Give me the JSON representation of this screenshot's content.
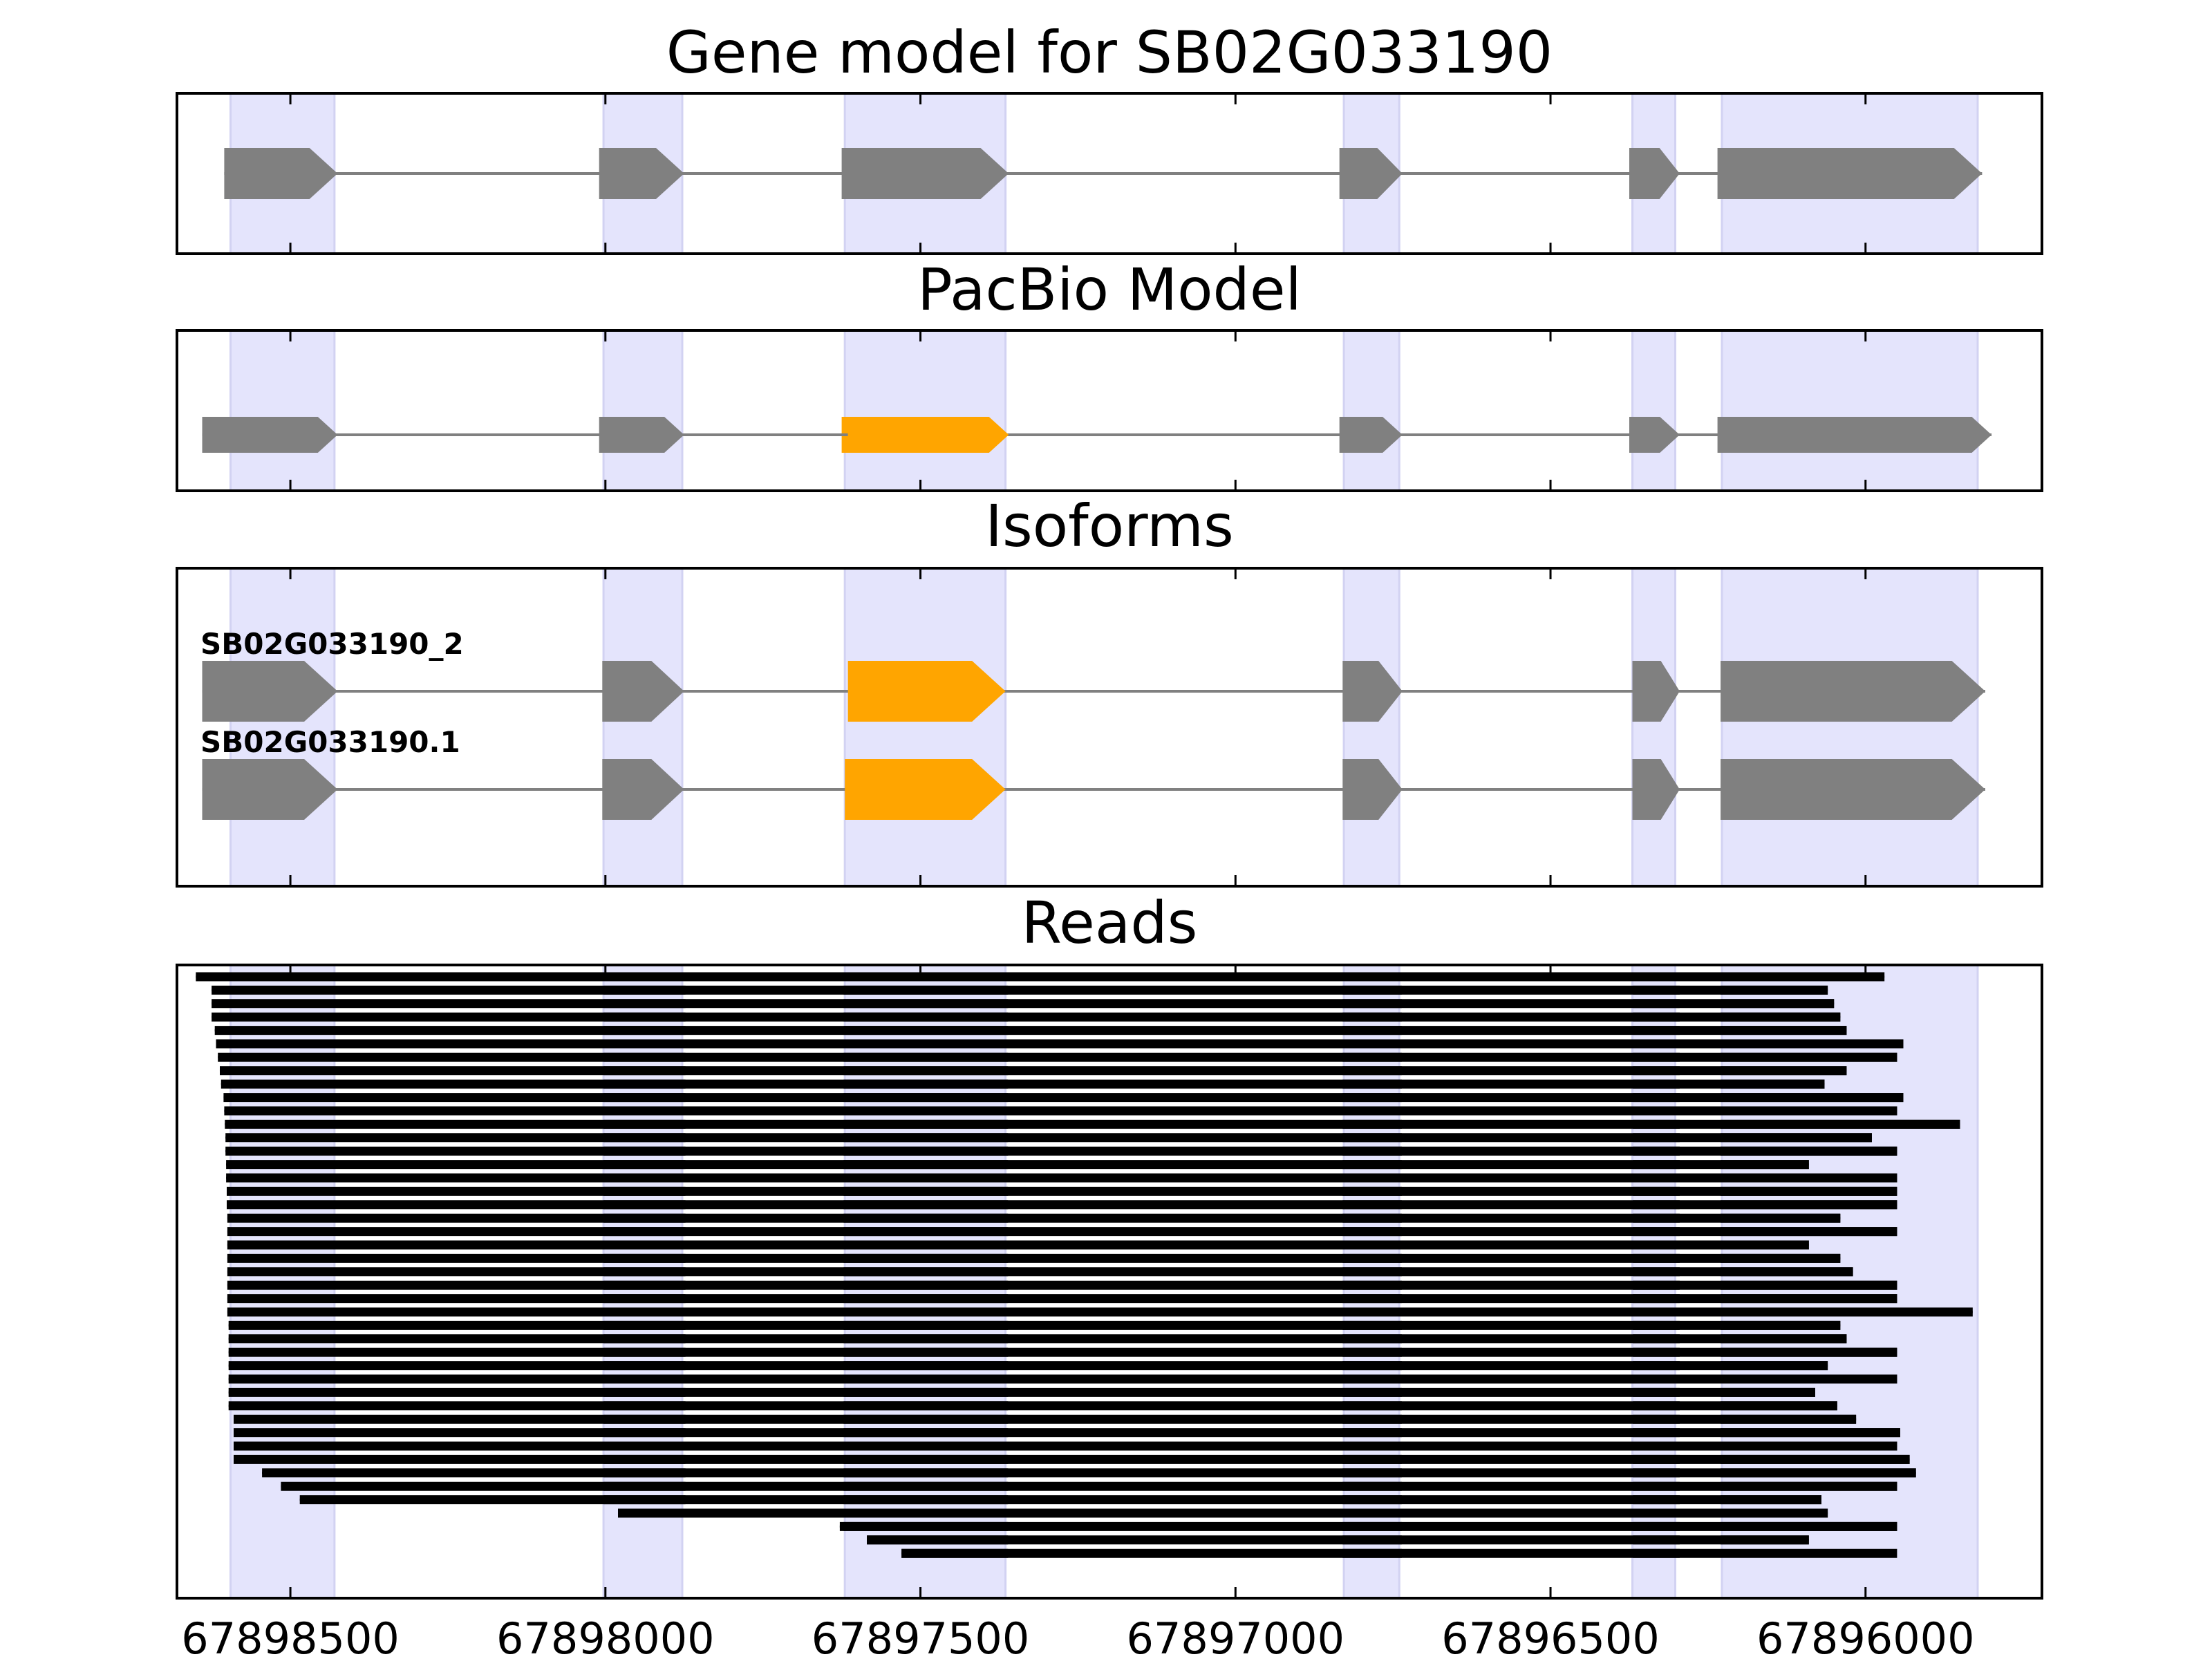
{
  "chart_data": {
    "type": "gene-structure",
    "x_axis": {
      "reversed": true,
      "range": [
        67898680,
        67895720
      ],
      "ticks": [
        67898500,
        67898000,
        67897500,
        67897000,
        67896500,
        67896000
      ],
      "tick_labels": [
        "67898500",
        "67898000",
        "67897500",
        "67897000",
        "67896500",
        "67896000"
      ]
    },
    "highlight_color": "#e4e4fc",
    "exon_color": "#808080",
    "alt_exon_color": "#ffa500",
    "intron_color": "#808080",
    "read_color": "#000000",
    "highlight_regions": [
      [
        67898595,
        67898430
      ],
      [
        67898003,
        67897878
      ],
      [
        67897620,
        67897365
      ],
      [
        67896828,
        67896740
      ],
      [
        67896370,
        67896302
      ],
      [
        67896228,
        67895822
      ]
    ],
    "panels": [
      {
        "name": "gene-model",
        "title": "Gene model for SB02G033190",
        "tracks": [
          {
            "exons": [
              [
                67898605,
                67898425
              ],
              [
                67898010,
                67897875
              ],
              [
                67897625,
                67897360
              ],
              [
                67896835,
                67896735
              ],
              [
                67896375,
                67896295
              ],
              [
                67896235,
                67895815
              ]
            ],
            "alt_exons": []
          }
        ]
      },
      {
        "name": "pacbio-model",
        "title": "PacBio Model",
        "tracks": [
          {
            "exons": [
              [
                67898640,
                67898425
              ],
              [
                67898010,
                67897875
              ],
              [
                67896835,
                67896735
              ],
              [
                67896375,
                67896295
              ],
              [
                67896235,
                67895800
              ]
            ],
            "alt_exons": [
              [
                67897625,
                67897360
              ]
            ]
          },
          {
            "exons": [],
            "alt_exons": [
              [
                67897615,
                67897360
              ]
            ],
            "curve_in": 67897875,
            "curve_out": 67896835
          }
        ]
      },
      {
        "name": "isoforms",
        "title": "Isoforms",
        "tracks": [
          {
            "label": "SB02G033190_2",
            "exons": [
              [
                67898640,
                67898425
              ],
              [
                67898005,
                67897875
              ],
              [
                67896830,
                67896735
              ],
              [
                67896370,
                67896295
              ],
              [
                67896230,
                67895810
              ]
            ],
            "alt_exons": [
              [
                67897615,
                67897365
              ]
            ]
          },
          {
            "label": "SB02G033190.1",
            "exons": [
              [
                67898640,
                67898425
              ],
              [
                67898005,
                67897875
              ],
              [
                67896830,
                67896735
              ],
              [
                67896370,
                67896295
              ],
              [
                67896230,
                67895810
              ]
            ],
            "alt_exons": [
              [
                67897620,
                67897365
              ]
            ]
          }
        ]
      },
      {
        "name": "reads",
        "title": "Reads",
        "reads": {
          "count": 44,
          "exon_template": [
            [
              67898430,
              null
            ],
            [
              67898003,
              67897873
            ],
            [
              67897622,
              67897361
            ],
            [
              67896830,
              67896736
            ],
            [
              67896369,
              67896295
            ],
            [
              67896230,
              null
            ]
          ],
          "starts": [
            67898650,
            67898625,
            67898625,
            67898625,
            67898620,
            67898618,
            67898615,
            67898612,
            67898610,
            67898606,
            67898605,
            67898604,
            67898603,
            67898603,
            67898602,
            67898602,
            67898601,
            67898601,
            67898600,
            67898600,
            67898600,
            67898600,
            67898600,
            67898600,
            67898600,
            67898600,
            67898598,
            67898598,
            67898598,
            67898598,
            67898598,
            67898598,
            67898598,
            67898590,
            67898590,
            67898590,
            67898590,
            67898545,
            67898515,
            67898485,
            67897980,
            67897628,
            67897585,
            67897530
          ],
          "ends": [
            67895970,
            67896060,
            67896050,
            67896040,
            67896030,
            67895940,
            67895950,
            67896030,
            67896065,
            67895940,
            67895950,
            67895850,
            67895990,
            67895950,
            67896090,
            67895950,
            67895950,
            67895950,
            67896040,
            67895950,
            67896090,
            67896040,
            67896020,
            67895950,
            67895950,
            67895830,
            67896040,
            67896030,
            67895950,
            67896060,
            67895950,
            67896080,
            67896045,
            67896015,
            67895945,
            67895950,
            67895930,
            67895920,
            67895950,
            67896070,
            67896060,
            67895950,
            67896090,
            67895950
          ],
          "dropped": [
            [],
            [],
            [],
            [],
            [],
            [],
            [],
            [],
            [],
            [],
            [],
            [],
            [],
            [],
            [],
            [],
            [],
            [],
            [],
            [],
            [],
            [],
            [],
            [],
            [],
            [],
            [],
            [],
            [],
            [],
            [],
            [],
            [],
            [],
            [],
            [],
            [],
            [],
            [],
            [],
            [],
            [],
            [],
            [
              5
            ]
          ]
        }
      }
    ]
  }
}
